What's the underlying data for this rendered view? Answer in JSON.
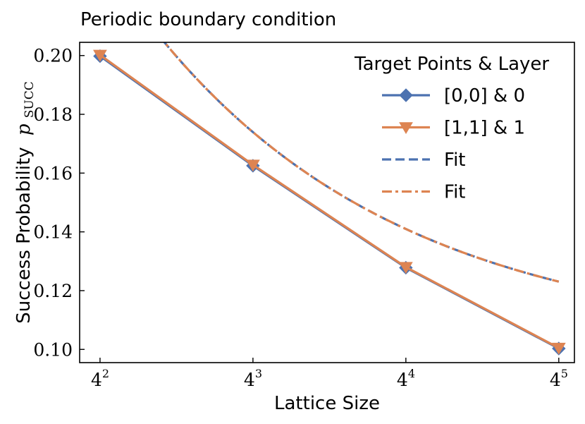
{
  "chart_data": {
    "type": "line",
    "title": "Periodic boundary condition",
    "xlabel": "Lattice Size",
    "ylabel": "Success Probability",
    "ylabel_math": "p",
    "ylabel_sub": "SUCC",
    "x_scale": "log",
    "x_ticks": [
      {
        "value": 16,
        "base": "4",
        "exp": "2"
      },
      {
        "value": 64,
        "base": "4",
        "exp": "3"
      },
      {
        "value": 256,
        "base": "4",
        "exp": "4"
      },
      {
        "value": 1024,
        "base": "4",
        "exp": "5"
      }
    ],
    "xlim": [
      13.3,
      1180
    ],
    "ylim": [
      0.0955,
      0.2045
    ],
    "y_ticks": [
      0.1,
      0.12,
      0.14,
      0.16,
      0.18,
      0.2
    ],
    "y_tick_labels": [
      "0.10",
      "0.12",
      "0.14",
      "0.16",
      "0.18",
      "0.20"
    ],
    "legend": {
      "title": "Target Points & Layer",
      "position": "top-right"
    },
    "series": [
      {
        "name": "[0,0] & 0",
        "color": "#4c72b0",
        "marker": "diamond",
        "linestyle": "solid",
        "x": [
          16,
          64,
          256,
          1024
        ],
        "y": [
          0.1998,
          0.1625,
          0.1278,
          0.1003
        ]
      },
      {
        "name": "[1,1] & 1",
        "color": "#dd8452",
        "marker": "triangle-down",
        "linestyle": "solid",
        "x": [
          16,
          64,
          256,
          1024
        ],
        "y": [
          0.2002,
          0.1628,
          0.128,
          0.1005
        ]
      },
      {
        "name": "Fit",
        "color": "#4c72b0",
        "marker": "none",
        "linestyle": "dashed",
        "fit": {
          "a": 0.45,
          "b": 0.10175,
          "c": 0.44
        }
      },
      {
        "name": "Fit",
        "color": "#dd8452",
        "marker": "none",
        "linestyle": "dashdot",
        "fit": {
          "a": 0.45,
          "b": 0.10175,
          "c": 0.44
        }
      }
    ]
  }
}
